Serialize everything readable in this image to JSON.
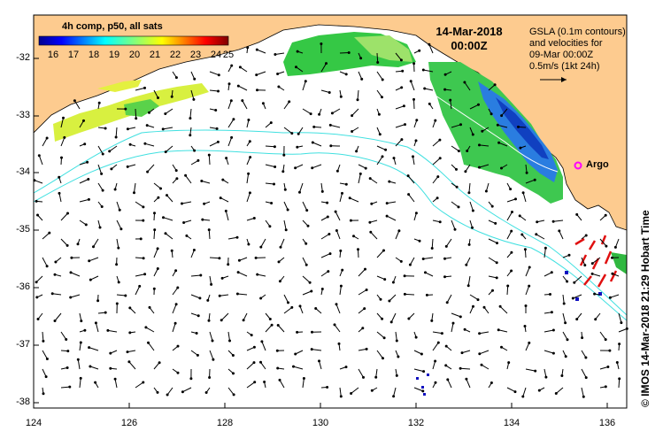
{
  "title": {
    "date": "14-Mar-2018",
    "time": "00:00Z"
  },
  "legend": {
    "title": "4h comp, p50, all sats",
    "ticks": [
      "16",
      "17",
      "18",
      "19",
      "20",
      "21",
      "22",
      "23",
      "24",
      "25"
    ]
  },
  "gsla_note": [
    "GSLA (0.1m contours)",
    "and velocities for",
    "09-Mar 00:00Z",
    "0.5m/s (1kt 24h)"
  ],
  "argo_label": "Argo",
  "credit": "© IMOS 14-Mar-2018 21:29 Hobart Time",
  "axes": {
    "y_ticks": [
      "-32",
      "-33",
      "-34",
      "-35",
      "-36",
      "-37",
      "-38"
    ],
    "x_ticks": [
      "124",
      "126",
      "128",
      "130",
      "132",
      "134",
      "136"
    ]
  },
  "colors": {
    "land": "#fdcb8f",
    "contour": "#40e0e0",
    "argo": "#ff00ff"
  }
}
